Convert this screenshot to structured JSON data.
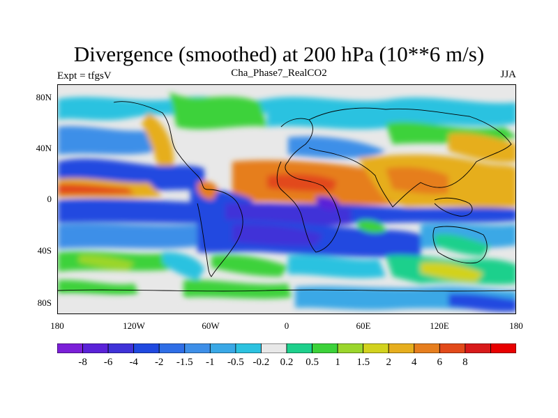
{
  "title": "Divergence (smoothed) at 200 hPa (10**6 m/s)",
  "subtitle_left": "Expt = tfgsV",
  "subtitle_center": "Cha_Phase7_RealCO2",
  "subtitle_right": "JJA",
  "lat_labels": [
    "80N",
    "40N",
    "0",
    "40S",
    "80S"
  ],
  "lon_labels": [
    "180",
    "120W",
    "60W",
    "0",
    "60E",
    "120E",
    "180"
  ],
  "colorbar": {
    "colors": [
      "#7b1fd8",
      "#5a22d8",
      "#3f32d8",
      "#2049e0",
      "#2f6ee6",
      "#3e8fe8",
      "#3aa8e6",
      "#2cc2e0",
      "#e8e8e8",
      "#1ed08c",
      "#3cd23a",
      "#9bd62c",
      "#d2d21e",
      "#e6ae1e",
      "#e67e1e",
      "#e24a1a",
      "#d81a1a",
      "#e80000"
    ],
    "labels": [
      "-8",
      "-6",
      "-4",
      "-2",
      "-1.5",
      "-1",
      "-0.5",
      "-0.2",
      "0.2",
      "0.5",
      "1",
      "1.5",
      "2",
      "4",
      "6",
      "8"
    ]
  }
}
